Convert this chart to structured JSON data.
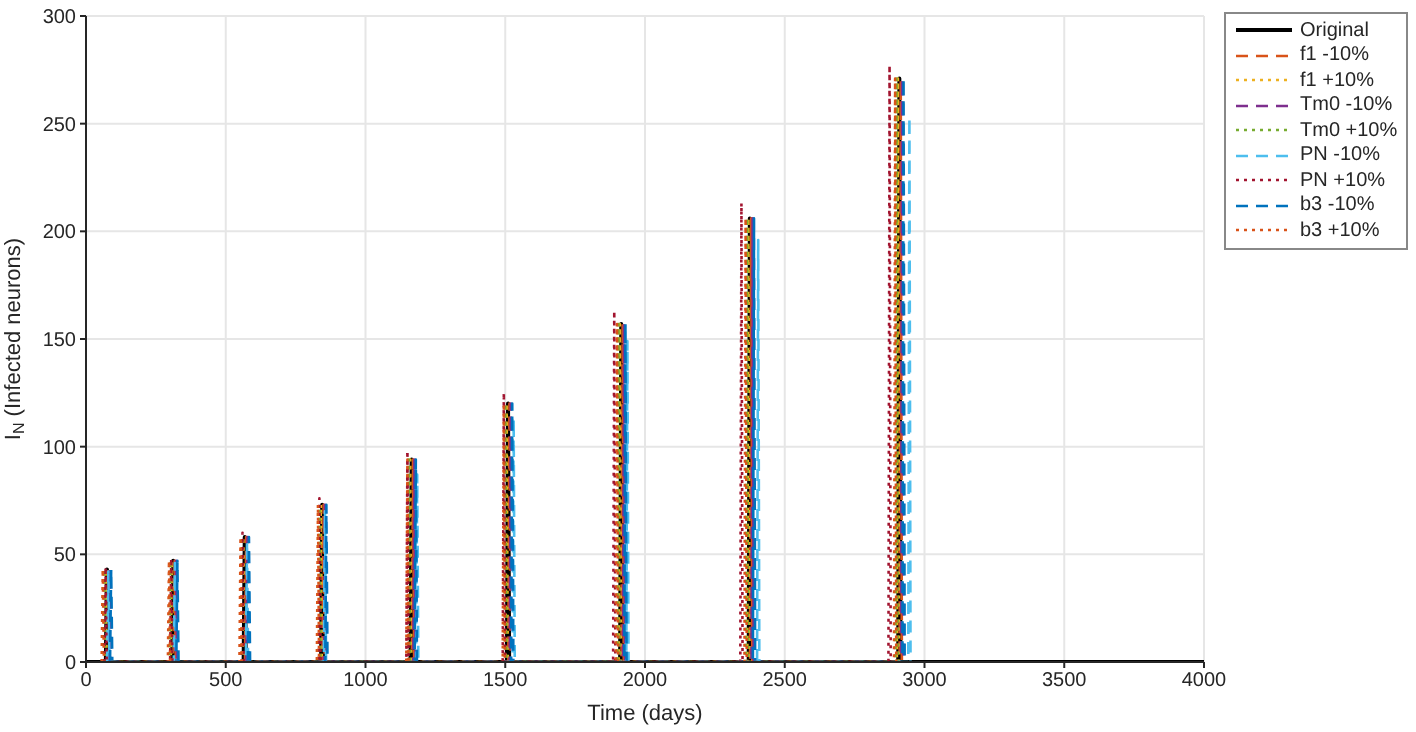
{
  "chart_data": {
    "type": "line",
    "xlabel": "Time (days)",
    "ylabel": "I$_{N}$ (Infected neurons)",
    "xlim": [
      0,
      4000
    ],
    "xticks": [
      0,
      500,
      1000,
      1500,
      2000,
      2500,
      3000,
      3500,
      4000
    ],
    "ylim": [
      0,
      300
    ],
    "yticks": [
      0,
      50,
      100,
      150,
      200,
      250,
      300
    ],
    "grid": true,
    "legend": "top right",
    "series": [
      {
        "name": "Original",
        "color": "#000000",
        "line_style": "solid",
        "x": [
          0,
          71,
          75,
          79,
          308,
          312,
          316,
          564,
          568,
          572,
          841,
          845,
          849,
          1161,
          1165,
          1169,
          1506,
          1510,
          1514,
          1911,
          1915,
          1919,
          2371,
          2375,
          2379,
          2906,
          2910,
          2914,
          4000
        ],
        "values": [
          0,
          0,
          43,
          0,
          0,
          47,
          0,
          0,
          58,
          0,
          0,
          73,
          0,
          0,
          94,
          0,
          0,
          120,
          0,
          0,
          157,
          0,
          0,
          206,
          0,
          0,
          271,
          0,
          0
        ]
      },
      {
        "name": "f1 -10%",
        "color": "#d95319",
        "line_style": "dashed",
        "x": [
          76,
          80,
          84,
          313,
          317,
          321,
          569,
          573,
          577,
          846,
          850,
          854,
          1166,
          1170,
          1174,
          1511,
          1515,
          1519,
          1916,
          1920,
          1924,
          2376,
          2380,
          2384,
          2911,
          2915,
          2919
        ],
        "values": [
          0,
          43,
          0,
          0,
          47,
          0,
          0,
          58,
          0,
          0,
          73,
          0,
          0,
          94,
          0,
          0,
          120,
          0,
          0,
          157,
          0,
          0,
          206,
          0,
          0,
          270,
          0
        ]
      },
      {
        "name": "f1 +10%",
        "color": "#edb120",
        "line_style": "dotted",
        "x": [
          66,
          70,
          74,
          303,
          307,
          311,
          559,
          563,
          567,
          836,
          840,
          844,
          1156,
          1160,
          1164,
          1501,
          1505,
          1509,
          1906,
          1910,
          1914,
          2366,
          2370,
          2374,
          2901,
          2905,
          2909
        ],
        "values": [
          0,
          43,
          0,
          0,
          47,
          0,
          0,
          58,
          0,
          0,
          73,
          0,
          0,
          94,
          0,
          0,
          120,
          0,
          0,
          157,
          0,
          0,
          206,
          0,
          0,
          271,
          0
        ]
      },
      {
        "name": "Tm0 -10%",
        "color": "#7e2f8e",
        "line_style": "dashed",
        "x": [
          81,
          85,
          89,
          318,
          322,
          326,
          574,
          578,
          582,
          851,
          855,
          859,
          1171,
          1175,
          1179,
          1516,
          1520,
          1524,
          1921,
          1925,
          1929,
          2381,
          2385,
          2389,
          2916,
          2920,
          2924
        ],
        "values": [
          0,
          43,
          0,
          0,
          47,
          0,
          0,
          58,
          0,
          0,
          73,
          0,
          0,
          94,
          0,
          0,
          120,
          0,
          0,
          157,
          0,
          0,
          206,
          0,
          0,
          271,
          0
        ]
      },
      {
        "name": "Tm0 +10%",
        "color": "#77ac30",
        "line_style": "dotted",
        "x": [
          61,
          65,
          69,
          298,
          302,
          306,
          554,
          558,
          562,
          831,
          835,
          839,
          1151,
          1155,
          1159,
          1496,
          1500,
          1504,
          1901,
          1905,
          1909,
          2361,
          2365,
          2369,
          2896,
          2900,
          2904
        ],
        "values": [
          0,
          43,
          0,
          0,
          47,
          0,
          0,
          58,
          0,
          0,
          73,
          0,
          0,
          94,
          0,
          0,
          120,
          0,
          0,
          157,
          0,
          0,
          206,
          0,
          0,
          271,
          0
        ]
      },
      {
        "name": "PN -10%",
        "color": "#4dbeee",
        "line_style": "dashed",
        "x": [
          76,
          80,
          84,
          314,
          318,
          322,
          572,
          576,
          580,
          851,
          855,
          859,
          1181,
          1185,
          1189,
          1526,
          1530,
          1534,
          1933,
          1937,
          1941,
          2401,
          2405,
          2409,
          2942,
          2946,
          2950
        ],
        "values": [
          0,
          42,
          0,
          0,
          46,
          0,
          0,
          56,
          0,
          0,
          70,
          0,
          0,
          87,
          0,
          0,
          113,
          0,
          0,
          149,
          0,
          0,
          196,
          0,
          0,
          253,
          0
        ]
      },
      {
        "name": "PN +10%",
        "color": "#a2142f",
        "line_style": "dotted",
        "x": [
          66,
          70,
          74,
          301,
          305,
          309,
          556,
          560,
          564,
          831,
          835,
          839,
          1146,
          1150,
          1154,
          1491,
          1495,
          1499,
          1886,
          1890,
          1894,
          2341,
          2345,
          2349,
          2871,
          2875,
          2879
        ],
        "values": [
          0,
          44,
          0,
          0,
          48,
          0,
          0,
          60,
          0,
          0,
          76,
          0,
          0,
          98,
          0,
          0,
          125,
          0,
          0,
          163,
          0,
          0,
          213,
          0,
          0,
          277,
          0
        ]
      },
      {
        "name": "b3 -10%",
        "color": "#0072bd",
        "line_style": "dashed",
        "x": [
          86,
          90,
          94,
          323,
          327,
          331,
          579,
          583,
          587,
          856,
          860,
          864,
          1176,
          1180,
          1184,
          1521,
          1525,
          1529,
          1926,
          1930,
          1934,
          2386,
          2390,
          2394,
          2921,
          2925,
          2929
        ],
        "values": [
          0,
          43,
          0,
          0,
          47,
          0,
          0,
          58,
          0,
          0,
          73,
          0,
          0,
          94,
          0,
          0,
          120,
          0,
          0,
          157,
          0,
          0,
          206,
          0,
          0,
          271,
          0
        ]
      },
      {
        "name": "b3 +10%",
        "color": "#d95319",
        "line_style": "dotted",
        "x": [
          56,
          60,
          64,
          293,
          297,
          301,
          549,
          553,
          557,
          826,
          830,
          834,
          1146,
          1150,
          1154,
          1491,
          1495,
          1499,
          1896,
          1900,
          1904,
          2356,
          2360,
          2364,
          2891,
          2895,
          2899
        ],
        "values": [
          0,
          43,
          0,
          0,
          47,
          0,
          0,
          58,
          0,
          0,
          73,
          0,
          0,
          94,
          0,
          0,
          120,
          0,
          0,
          157,
          0,
          0,
          206,
          0,
          0,
          271,
          0
        ]
      }
    ]
  }
}
